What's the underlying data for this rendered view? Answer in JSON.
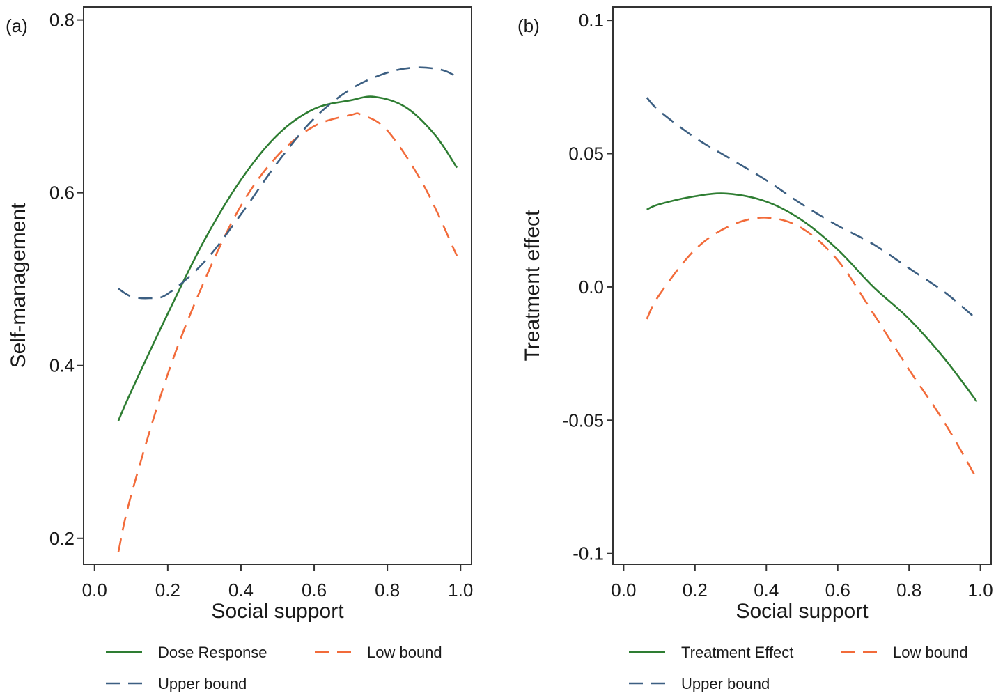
{
  "chart_data": [
    {
      "panel_label": "(a)",
      "type": "line",
      "title": "",
      "xlabel": "Social support",
      "ylabel": "Self-management",
      "xlim": [
        -0.03,
        1.03
      ],
      "ylim": [
        0.17,
        0.815
      ],
      "xticks": [
        0.0,
        0.2,
        0.4,
        0.6,
        0.8,
        1.0
      ],
      "xtick_labels": [
        "0.0",
        "0.2",
        "0.4",
        "0.6",
        "0.8",
        "1.0"
      ],
      "yticks": [
        0.2,
        0.4,
        0.6,
        0.8
      ],
      "ytick_labels": [
        "0.2",
        "0.4",
        "0.6",
        "0.8"
      ],
      "grid": false,
      "legend_position": "bottom",
      "series": [
        {
          "name": "Dose Response",
          "style": "solid",
          "color": "#2e7d32",
          "x": [
            0.065,
            0.1,
            0.2,
            0.3,
            0.4,
            0.5,
            0.6,
            0.7,
            0.765,
            0.85,
            0.93,
            0.99
          ],
          "y": [
            0.336,
            0.37,
            0.46,
            0.545,
            0.615,
            0.667,
            0.697,
            0.707,
            0.711,
            0.699,
            0.667,
            0.629
          ]
        },
        {
          "name": "Low bound",
          "style": "dashed",
          "color": "#f26b3a",
          "x": [
            0.065,
            0.1,
            0.2,
            0.3,
            0.4,
            0.5,
            0.6,
            0.7,
            0.73,
            0.8,
            0.9,
            0.99
          ],
          "y": [
            0.184,
            0.25,
            0.39,
            0.498,
            0.585,
            0.643,
            0.677,
            0.69,
            0.69,
            0.672,
            0.608,
            0.527
          ]
        },
        {
          "name": "Upper bound",
          "style": "dashed",
          "color": "#3c5f82",
          "x": [
            0.065,
            0.1,
            0.15,
            0.2,
            0.3,
            0.4,
            0.5,
            0.6,
            0.7,
            0.8,
            0.88,
            0.95,
            0.99
          ],
          "y": [
            0.489,
            0.48,
            0.478,
            0.483,
            0.52,
            0.575,
            0.635,
            0.686,
            0.72,
            0.739,
            0.745,
            0.742,
            0.734
          ]
        }
      ]
    },
    {
      "panel_label": "(b)",
      "type": "line",
      "title": "",
      "xlabel": "Social support",
      "ylabel": "Treatment effect",
      "xlim": [
        -0.03,
        1.03
      ],
      "ylim": [
        -0.104,
        0.105
      ],
      "xticks": [
        0.0,
        0.2,
        0.4,
        0.6,
        0.8,
        1.0
      ],
      "xtick_labels": [
        "0.0",
        "0.2",
        "0.4",
        "0.6",
        "0.8",
        "1.0"
      ],
      "yticks": [
        -0.1,
        -0.05,
        0.0,
        0.05,
        0.1
      ],
      "ytick_labels": [
        "-0.1",
        "-0.05",
        "0.0",
        "0.05",
        "0.1"
      ],
      "grid": false,
      "legend_position": "bottom",
      "series": [
        {
          "name": "Treatment Effect",
          "style": "solid",
          "color": "#2e7d32",
          "x": [
            0.065,
            0.1,
            0.2,
            0.29,
            0.4,
            0.5,
            0.6,
            0.7,
            0.8,
            0.9,
            0.99
          ],
          "y": [
            0.029,
            0.031,
            0.034,
            0.035,
            0.032,
            0.025,
            0.014,
            0.0,
            -0.012,
            -0.027,
            -0.043
          ]
        },
        {
          "name": "Low bound",
          "style": "dashed",
          "color": "#f26b3a",
          "x": [
            0.065,
            0.1,
            0.2,
            0.3,
            0.4,
            0.5,
            0.6,
            0.7,
            0.8,
            0.9,
            0.99
          ],
          "y": [
            -0.012,
            -0.003,
            0.014,
            0.023,
            0.026,
            0.022,
            0.01,
            -0.01,
            -0.031,
            -0.051,
            -0.072
          ]
        },
        {
          "name": "Upper bound",
          "style": "dashed",
          "color": "#3c5f82",
          "x": [
            0.065,
            0.1,
            0.2,
            0.3,
            0.4,
            0.5,
            0.6,
            0.7,
            0.8,
            0.9,
            0.98
          ],
          "y": [
            0.071,
            0.066,
            0.056,
            0.048,
            0.04,
            0.031,
            0.023,
            0.016,
            0.007,
            -0.002,
            -0.011
          ]
        }
      ]
    }
  ]
}
